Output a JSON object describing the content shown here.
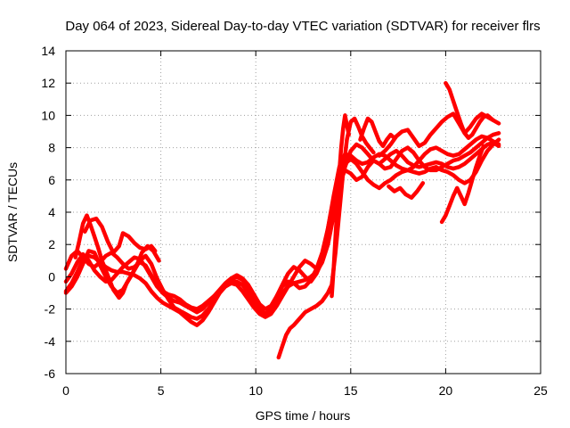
{
  "chart_data": {
    "type": "scatter",
    "title": "Day 064 of 2023, Sidereal Day-to-day VTEC variation (SDTVAR) for receiver flrs",
    "xlabel": "GPS time / hours",
    "ylabel": "SDTVAR / TECUs",
    "xlim": [
      0,
      25
    ],
    "ylim": [
      -6,
      14
    ],
    "xticks": [
      0,
      5,
      10,
      15,
      20,
      25
    ],
    "yticks": [
      -6,
      -4,
      -2,
      0,
      2,
      4,
      6,
      8,
      10,
      12,
      14
    ],
    "grid": true,
    "legend": "none",
    "marker_color": "#ff0000",
    "series": [
      {
        "x": [
          0.0,
          0.3,
          0.6,
          0.9,
          1.2,
          1.5,
          1.8,
          2.1,
          2.4,
          2.7,
          3.0,
          3.3,
          3.6,
          3.9,
          4.2,
          4.5,
          4.8,
          5.1,
          5.4,
          5.7,
          6.0,
          6.3,
          6.6,
          6.9,
          7.2,
          7.5,
          7.8,
          8.1,
          8.4,
          8.7,
          9.0,
          9.3,
          9.6,
          9.9,
          10.2,
          10.5,
          10.8,
          11.1,
          11.4,
          11.7,
          12.0,
          12.3,
          12.6,
          12.9,
          13.2,
          13.5,
          13.8,
          14.1,
          14.4,
          14.7,
          15.0,
          15.3,
          15.6,
          15.9,
          16.2,
          16.5,
          16.8,
          17.1,
          17.4,
          17.7,
          18.0,
          18.3,
          18.6,
          18.9,
          19.2,
          19.5,
          19.8,
          20.1,
          20.4,
          20.7,
          21.0,
          21.3,
          21.6,
          21.9,
          22.2,
          22.5,
          22.8
        ],
        "y": [
          -0.9,
          -0.4,
          0.3,
          1.1,
          1.3,
          1.2,
          0.9,
          0.6,
          0.4,
          0.3,
          0.3,
          0.2,
          0.1,
          -0.1,
          -0.4,
          -0.9,
          -1.3,
          -1.6,
          -1.8,
          -2.0,
          -2.2,
          -2.5,
          -2.8,
          -3.0,
          -2.7,
          -2.2,
          -1.6,
          -1.0,
          -0.5,
          -0.2,
          0.0,
          -0.2,
          -0.6,
          -1.3,
          -2.0,
          -2.3,
          -2.0,
          -1.2,
          -0.6,
          -0.3,
          -0.4,
          -0.7,
          -0.6,
          -0.2,
          0.5,
          1.5,
          3.0,
          4.8,
          6.2,
          7.0,
          7.3,
          7.0,
          6.5,
          6.0,
          5.7,
          5.5,
          5.8,
          6.0,
          6.3,
          6.5,
          6.6,
          6.5,
          6.4,
          6.5,
          6.7,
          6.8,
          6.6,
          6.5,
          6.3,
          6.0,
          5.8,
          6.0,
          6.5,
          7.2,
          7.8,
          8.2,
          8.5
        ]
      },
      {
        "x": [
          0.0,
          0.3,
          0.6,
          0.9,
          1.2,
          1.5,
          1.8,
          2.1,
          2.4,
          2.7,
          3.0,
          3.3,
          3.6,
          3.9,
          4.2,
          4.5,
          4.8,
          5.1,
          5.4,
          5.7,
          6.0,
          6.3,
          6.6,
          6.9,
          7.2,
          7.5,
          7.8,
          8.1,
          8.4,
          8.7,
          9.0,
          9.3,
          9.6,
          9.9,
          10.2,
          10.5,
          10.8,
          11.1,
          11.4,
          11.7,
          12.0,
          12.3,
          12.6,
          12.9,
          13.2,
          13.5,
          13.8,
          14.1,
          14.4,
          14.7,
          15.0,
          15.3,
          15.6,
          15.9,
          16.2,
          16.5,
          16.8,
          17.1,
          17.4,
          17.7,
          18.0,
          18.3,
          18.6,
          18.9,
          19.2,
          19.5,
          19.8,
          20.1,
          20.4,
          20.7,
          21.0,
          21.3,
          21.6,
          21.9,
          22.2,
          22.5,
          22.8
        ],
        "y": [
          0.5,
          1.3,
          1.6,
          1.2,
          0.8,
          0.6,
          0.9,
          1.3,
          1.5,
          1.2,
          0.8,
          0.5,
          0.6,
          0.9,
          0.7,
          0.1,
          -0.5,
          -0.9,
          -1.1,
          -1.2,
          -1.4,
          -1.7,
          -1.9,
          -2.0,
          -1.8,
          -1.5,
          -1.2,
          -0.9,
          -0.6,
          -0.4,
          -0.3,
          -0.5,
          -1.0,
          -1.6,
          -2.1,
          -2.4,
          -2.1,
          -1.5,
          -1.0,
          -0.6,
          -0.4,
          -0.3,
          -0.2,
          0.0,
          0.3,
          0.9,
          2.0,
          3.8,
          5.5,
          6.8,
          7.8,
          8.2,
          8.0,
          7.6,
          7.2,
          7.0,
          7.3,
          7.6,
          7.8,
          7.5,
          7.1,
          6.9,
          6.8,
          6.9,
          7.0,
          7.1,
          7.0,
          6.8,
          6.7,
          6.8,
          7.0,
          7.3,
          7.6,
          7.9,
          8.2,
          8.3,
          8.1
        ]
      },
      {
        "x": [
          0.0,
          0.3,
          0.6,
          0.9,
          1.2,
          1.5,
          1.8,
          2.1,
          2.4,
          2.7,
          3.0,
          3.3,
          3.6,
          3.9,
          4.2,
          4.5,
          4.8,
          5.1,
          5.4,
          5.7,
          6.0,
          6.3,
          6.6,
          6.9,
          7.2,
          7.5,
          7.8,
          8.1,
          8.4,
          8.7,
          9.0,
          9.3,
          9.6,
          9.9,
          10.2,
          10.5,
          10.8,
          11.1,
          11.4,
          11.7,
          12.0,
          12.3,
          12.6,
          12.9,
          13.2,
          13.5,
          13.8,
          14.1,
          14.4,
          14.7,
          15.0,
          15.3,
          15.6,
          15.9,
          16.2,
          16.5,
          16.8,
          17.1,
          17.4,
          17.7,
          18.0,
          18.3,
          18.6,
          18.9,
          19.2,
          19.5,
          19.8,
          20.1,
          20.4,
          20.7,
          21.0,
          21.3,
          21.6,
          21.9,
          22.2,
          22.5,
          22.8
        ],
        "y": [
          -0.3,
          0.2,
          0.9,
          1.4,
          1.0,
          0.4,
          0.0,
          -0.3,
          -0.2,
          0.2,
          0.6,
          0.9,
          1.2,
          1.1,
          0.6,
          0.0,
          -0.6,
          -1.0,
          -1.3,
          -1.5,
          -1.6,
          -1.8,
          -2.0,
          -2.2,
          -2.0,
          -1.6,
          -1.2,
          -0.8,
          -0.4,
          -0.1,
          0.1,
          -0.1,
          -0.5,
          -1.1,
          -1.7,
          -2.0,
          -1.8,
          -1.2,
          -0.5,
          0.2,
          0.6,
          0.4,
          0.0,
          -0.3,
          0.2,
          1.0,
          2.5,
          4.3,
          5.8,
          6.6,
          6.4,
          6.0,
          6.2,
          6.8,
          7.2,
          7.0,
          6.7,
          6.8,
          7.3,
          7.8,
          8.0,
          7.7,
          7.2,
          6.8,
          6.6,
          6.6,
          6.8,
          7.0,
          7.2,
          7.3,
          7.5,
          7.7,
          8.0,
          8.3,
          8.6,
          8.8,
          8.9
        ]
      },
      {
        "x": [
          0.0,
          0.3,
          0.6,
          0.9,
          1.2,
          1.5,
          1.8,
          2.1,
          2.4,
          2.7,
          3.0,
          3.3,
          3.6,
          3.9,
          4.2,
          4.5,
          4.8,
          5.1,
          5.4,
          5.7,
          6.0,
          6.3,
          6.6,
          6.9,
          7.2,
          7.5,
          7.8,
          8.1,
          8.4,
          8.7,
          9.0,
          9.3,
          9.6,
          9.9,
          10.2,
          10.5,
          10.8,
          11.1,
          11.4,
          11.7,
          12.0,
          12.3,
          12.6,
          12.9,
          13.2,
          13.5,
          13.8,
          14.1,
          14.4,
          14.7,
          15.0,
          15.3,
          15.6,
          15.9,
          16.2,
          16.5,
          16.8,
          17.1,
          17.4,
          17.7,
          18.0,
          18.3,
          18.6,
          18.9,
          19.2,
          19.5,
          19.8,
          20.1,
          20.4,
          20.7,
          21.0,
          21.3,
          21.6,
          21.9,
          22.2,
          22.5,
          22.8
        ],
        "y": [
          -1.0,
          -0.6,
          0.0,
          0.8,
          1.6,
          1.5,
          0.7,
          0.0,
          -0.6,
          -1.0,
          -0.8,
          -0.2,
          0.4,
          1.0,
          1.3,
          0.8,
          -0.1,
          -0.8,
          -1.4,
          -1.9,
          -2.1,
          -2.3,
          -2.5,
          -2.6,
          -2.4,
          -2.0,
          -1.5,
          -1.0,
          -0.6,
          -0.4,
          -0.5,
          -0.9,
          -1.4,
          -1.9,
          -2.3,
          -2.5,
          -2.3,
          -1.8,
          -1.2,
          -0.6,
          0.0,
          0.6,
          1.0,
          0.8,
          0.5,
          1.2,
          3.0,
          5.0,
          6.8,
          7.6,
          7.5,
          7.2,
          7.0,
          7.1,
          7.4,
          7.6,
          7.5,
          7.2,
          6.9,
          6.7,
          6.6,
          6.8,
          7.2,
          7.6,
          7.9,
          8.0,
          7.8,
          7.6,
          7.5,
          7.6,
          7.9,
          8.2,
          8.5,
          8.7,
          8.6,
          8.4,
          8.2
        ]
      },
      {
        "x": [
          0.5,
          0.7,
          0.9,
          1.1,
          1.3,
          1.5,
          1.7,
          1.9,
          2.1,
          2.3,
          2.5,
          2.8,
          3.0,
          3.2,
          3.5,
          3.8,
          4.0,
          4.3,
          4.6,
          4.9
        ],
        "y": [
          1.2,
          2.2,
          3.3,
          3.8,
          3.2,
          2.5,
          1.8,
          1.0,
          0.4,
          -0.2,
          -0.8,
          -1.3,
          -1.0,
          -0.4,
          0.2,
          0.9,
          1.5,
          1.9,
          1.6,
          1.0
        ]
      },
      {
        "x": [
          1.0,
          1.3,
          1.6,
          1.9,
          2.2,
          2.5,
          2.8,
          3.0,
          3.3,
          3.6,
          3.9,
          4.2,
          4.5,
          4.7
        ],
        "y": [
          2.8,
          3.5,
          3.6,
          3.1,
          2.2,
          1.5,
          1.9,
          2.7,
          2.5,
          2.1,
          1.8,
          1.7,
          1.9,
          1.6
        ]
      },
      {
        "x": [
          11.2,
          11.4,
          11.6,
          11.8,
          12.0,
          12.3,
          12.6,
          12.9,
          13.2,
          13.5,
          13.8,
          14.0,
          14.2,
          14.4,
          14.6,
          14.8,
          15.0,
          15.2,
          15.4,
          15.6,
          15.8,
          16.0,
          16.2
        ],
        "y": [
          -5.0,
          -4.3,
          -3.6,
          -3.2,
          -3.0,
          -2.6,
          -2.2,
          -2.0,
          -1.8,
          -1.5,
          -1.0,
          -0.5,
          1.5,
          4.0,
          6.5,
          8.5,
          9.6,
          9.8,
          9.3,
          8.7,
          8.3,
          8.0,
          7.7
        ]
      },
      {
        "x": [
          14.0,
          14.1,
          14.2,
          14.3,
          14.4,
          14.5,
          14.6,
          14.7,
          14.8,
          14.9
        ],
        "y": [
          -1.2,
          0.5,
          2.5,
          4.5,
          6.5,
          8.0,
          9.2,
          10.0,
          9.4,
          8.8
        ]
      },
      {
        "x": [
          16.5,
          16.8,
          17.1,
          17.4,
          17.7,
          18.0,
          18.3,
          18.6,
          18.9,
          19.2,
          19.5,
          19.8,
          20.1,
          20.4,
          20.7,
          21.0,
          21.3,
          21.6,
          21.9,
          22.2,
          22.5,
          22.8
        ],
        "y": [
          7.5,
          7.8,
          8.2,
          8.7,
          9.0,
          9.1,
          8.6,
          8.1,
          8.3,
          8.8,
          9.2,
          9.6,
          9.9,
          10.1,
          9.5,
          8.9,
          9.3,
          9.8,
          10.1,
          9.9,
          9.7,
          9.5
        ]
      },
      {
        "x": [
          17.0,
          17.3,
          17.6,
          17.9,
          18.2,
          18.5,
          18.8
        ],
        "y": [
          5.6,
          5.3,
          5.5,
          5.1,
          4.9,
          5.3,
          5.8
        ]
      },
      {
        "x": [
          19.8,
          20.0,
          20.2,
          20.4,
          20.6,
          20.8,
          21.0,
          21.2,
          21.4,
          21.6,
          21.8,
          22.0
        ],
        "y": [
          3.4,
          3.8,
          4.4,
          5.0,
          5.5,
          5.0,
          4.5,
          5.2,
          6.0,
          6.8,
          7.5,
          8.1
        ]
      },
      {
        "x": [
          20.0,
          20.2,
          20.4,
          20.6,
          20.8,
          21.0,
          21.2,
          21.4,
          21.6,
          21.8,
          22.0,
          22.2,
          22.5
        ],
        "y": [
          12.0,
          11.6,
          10.9,
          10.2,
          9.5,
          8.9,
          8.6,
          8.8,
          9.2,
          9.6,
          9.9,
          10.0,
          9.7
        ]
      },
      {
        "x": [
          15.5,
          15.7,
          15.9,
          16.1,
          16.3,
          16.5,
          16.7,
          16.9,
          17.1,
          17.3
        ],
        "y": [
          8.5,
          9.2,
          9.8,
          9.6,
          9.0,
          8.4,
          8.1,
          8.5,
          8.8,
          8.6
        ]
      }
    ]
  }
}
